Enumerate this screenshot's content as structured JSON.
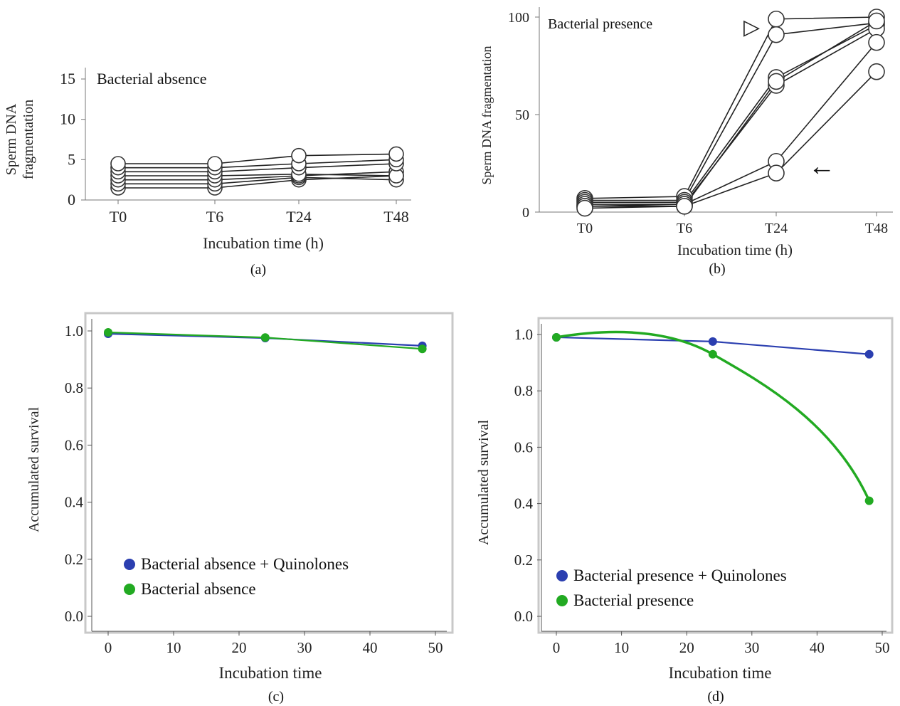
{
  "chart_data": [
    {
      "panel": "a",
      "type": "line",
      "annotation": "Bacterial absence",
      "xlabel": "Incubation time (h)",
      "ylabel": "Sperm DNA fragmentation",
      "categories": [
        "T0",
        "T6",
        "T24",
        "T48"
      ],
      "yticks": [
        0,
        5,
        10,
        15
      ],
      "ylim": [
        0,
        17
      ],
      "caption": "(a)",
      "series": [
        {
          "values": [
            1.5,
            1.5,
            2.5,
            3.0
          ]
        },
        {
          "values": [
            2.0,
            2.0,
            2.8,
            2.5
          ]
        },
        {
          "values": [
            2.5,
            2.5,
            3.0,
            3.5
          ]
        },
        {
          "values": [
            3.0,
            3.0,
            3.2,
            3.0
          ]
        },
        {
          "values": [
            3.5,
            3.5,
            4.0,
            4.5
          ]
        },
        {
          "values": [
            4.0,
            4.0,
            4.5,
            5.0
          ]
        },
        {
          "values": [
            4.5,
            4.5,
            5.5,
            5.7
          ]
        }
      ]
    },
    {
      "panel": "b",
      "type": "line",
      "annotation": "Bacterial presence",
      "xlabel": "Incubation time (h)",
      "ylabel": "Sperm DNA fragmentation",
      "categories": [
        "T0",
        "T6",
        "T24",
        "T48"
      ],
      "yticks": [
        0,
        50,
        100
      ],
      "ylim": [
        0,
        100
      ],
      "caption": "(b)",
      "markers": [
        "▷",
        "←"
      ],
      "series": [
        {
          "values": [
            7,
            8,
            99,
            100
          ]
        },
        {
          "values": [
            6,
            6,
            91,
            97
          ]
        },
        {
          "values": [
            5,
            5,
            69,
            96
          ]
        },
        {
          "values": [
            4,
            4,
            65,
            94
          ]
        },
        {
          "values": [
            3,
            3,
            67,
            98
          ]
        },
        {
          "values": [
            3,
            4,
            26,
            87
          ]
        },
        {
          "values": [
            2,
            3,
            20,
            72
          ]
        }
      ]
    },
    {
      "panel": "c",
      "type": "line",
      "xlabel": "Incubation time",
      "ylabel": "Accumulated survival",
      "xticks": [
        0,
        10,
        20,
        30,
        40,
        50
      ],
      "yticks": [
        "0.0",
        "0.2",
        "0.4",
        "0.6",
        "0.8",
        "1.0"
      ],
      "xlim": [
        0,
        50
      ],
      "ylim": [
        0,
        1.0
      ],
      "caption": "(c)",
      "series": [
        {
          "name": "Bacterial absence + Quinolones",
          "color": "#2b3fb0",
          "x": [
            0,
            24,
            48
          ],
          "y": [
            0.99,
            0.975,
            0.948
          ]
        },
        {
          "name": "Bacterial absence",
          "color": "#22aa22",
          "x": [
            0,
            24,
            48
          ],
          "y": [
            0.995,
            0.977,
            0.937
          ]
        }
      ]
    },
    {
      "panel": "d",
      "type": "line",
      "xlabel": "Incubation time",
      "ylabel": "Accumulated survival",
      "xticks": [
        0,
        10,
        20,
        30,
        40,
        50
      ],
      "yticks": [
        "0.0",
        "0.2",
        "0.4",
        "0.6",
        "0.8",
        "1.0"
      ],
      "xlim": [
        0,
        50
      ],
      "ylim": [
        0,
        1.0
      ],
      "caption": "(d)",
      "series": [
        {
          "name": "Bacterial presence + Quinolones",
          "color": "#2b3fb0",
          "x": [
            0,
            24,
            48
          ],
          "y": [
            0.99,
            0.975,
            0.93
          ]
        },
        {
          "name": "Bacterial presence",
          "color": "#22aa22",
          "x": [
            0,
            24,
            48
          ],
          "y": [
            0.99,
            0.93,
            0.41
          ]
        }
      ]
    }
  ]
}
